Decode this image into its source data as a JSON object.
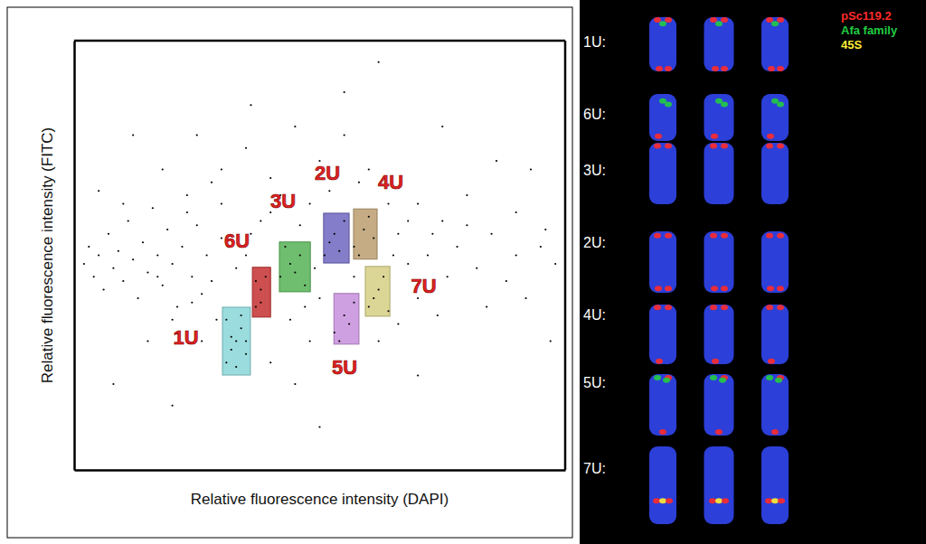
{
  "chart_data": {
    "type": "scatter",
    "x_label": "Relative fluorescence intensity (DAPI)",
    "y_label": "Relative fluorescence intensity (FITC)",
    "xlim": [
      0,
      100
    ],
    "ylim": [
      0,
      100
    ],
    "tick_labels": false,
    "color": "#000000",
    "marker": "dot",
    "x": [
      2,
      3,
      4,
      5,
      6,
      7,
      8,
      9,
      10,
      11,
      12,
      13,
      14,
      15,
      16,
      17,
      18,
      19,
      20,
      21,
      22,
      23,
      24,
      25,
      26,
      27,
      28,
      29,
      30,
      31,
      32,
      33,
      34,
      35,
      31,
      33,
      34,
      32,
      35,
      37,
      38,
      39,
      37,
      38,
      42,
      44,
      46,
      47,
      43,
      45,
      51,
      53,
      55,
      52,
      54,
      57,
      59,
      60,
      58,
      61,
      60,
      62,
      63,
      61,
      64,
      53,
      55,
      57,
      54,
      56,
      30,
      35,
      40,
      45,
      50,
      55,
      60,
      65,
      70,
      75,
      80,
      85,
      90,
      95,
      98,
      40,
      48,
      52,
      58,
      66,
      68,
      72,
      76,
      82,
      88,
      92,
      96,
      44,
      48,
      50,
      62,
      66,
      70,
      74,
      78,
      84,
      40,
      45,
      26,
      20,
      15,
      10,
      18,
      25,
      36,
      55,
      75,
      62,
      20,
      8,
      12,
      5,
      50,
      70,
      86,
      93,
      97,
      38,
      42,
      46,
      64,
      68,
      80,
      28,
      24,
      17,
      33,
      36,
      30,
      47,
      57,
      65,
      73,
      90,
      35,
      49,
      23
    ],
    "values": [
      48,
      52,
      45,
      50,
      42,
      55,
      47,
      51,
      44,
      58,
      49,
      40,
      53,
      46,
      61,
      50,
      43,
      56,
      48,
      38,
      52,
      64,
      45,
      57,
      41,
      50,
      67,
      35,
      54,
      25,
      28,
      30,
      33,
      27,
      35,
      24,
      36,
      31,
      30,
      38,
      42,
      45,
      44,
      39,
      45,
      48,
      50,
      43,
      52,
      46,
      50,
      55,
      58,
      53,
      51,
      52,
      56,
      59,
      50,
      54,
      38,
      42,
      45,
      40,
      37,
      32,
      36,
      39,
      30,
      34,
      70,
      75,
      68,
      80,
      72,
      78,
      70,
      66,
      62,
      58,
      64,
      55,
      60,
      52,
      48,
      60,
      62,
      65,
      67,
      55,
      48,
      50,
      45,
      47,
      44,
      40,
      56,
      35,
      30,
      40,
      30,
      34,
      40,
      36,
      52,
      38,
      25,
      20,
      30,
      35,
      30,
      62,
      70,
      78,
      85,
      88,
      80,
      95,
      15,
      20,
      78,
      65,
      10,
      22,
      72,
      70,
      30,
      58,
      64,
      57,
      62,
      58,
      57,
      44,
      39,
      45,
      47,
      55,
      62,
      38,
      45,
      50,
      55,
      50,
      50,
      47,
      60
    ],
    "gates": [
      {
        "label": "1U",
        "color": "#8ad6d8",
        "x0": 30.2,
        "x1": 35.9,
        "y0": 22.1,
        "y1": 37.9
      },
      {
        "label": "2U",
        "color": "#6f66c0",
        "x0": 50.8,
        "x1": 56.0,
        "y0": 48.2,
        "y1": 59.8
      },
      {
        "label": "3U",
        "color": "#56b356",
        "x0": 41.8,
        "x1": 48.1,
        "y0": 41.5,
        "y1": 53.1
      },
      {
        "label": "4U",
        "color": "#bb9e70",
        "x0": 56.9,
        "x1": 61.7,
        "y0": 49.1,
        "y1": 60.8
      },
      {
        "label": "5U",
        "color": "#c78fdc",
        "x0": 52.9,
        "x1": 58.0,
        "y0": 29.3,
        "y1": 41.1
      },
      {
        "label": "6U",
        "color": "#c43030",
        "x0": 36.3,
        "x1": 40.0,
        "y0": 35.6,
        "y1": 47.2
      },
      {
        "label": "7U",
        "color": "#d6cf84",
        "x0": 59.3,
        "x1": 64.3,
        "y0": 35.8,
        "y1": 47.4
      }
    ],
    "label_color": "#e32222"
  },
  "panel": {
    "legend": [
      {
        "label": "pSc119.2",
        "color": "#ff2a2a"
      },
      {
        "label": "Afa family",
        "color": "#22cc44"
      },
      {
        "label": "45S",
        "color": "#ffee33"
      }
    ],
    "rows": [
      {
        "label": "1U:"
      },
      {
        "label": "6U:"
      },
      {
        "label": "3U:"
      },
      {
        "label": "2U:"
      },
      {
        "label": "4U:"
      },
      {
        "label": "5U:"
      },
      {
        "label": "7U:"
      }
    ]
  }
}
